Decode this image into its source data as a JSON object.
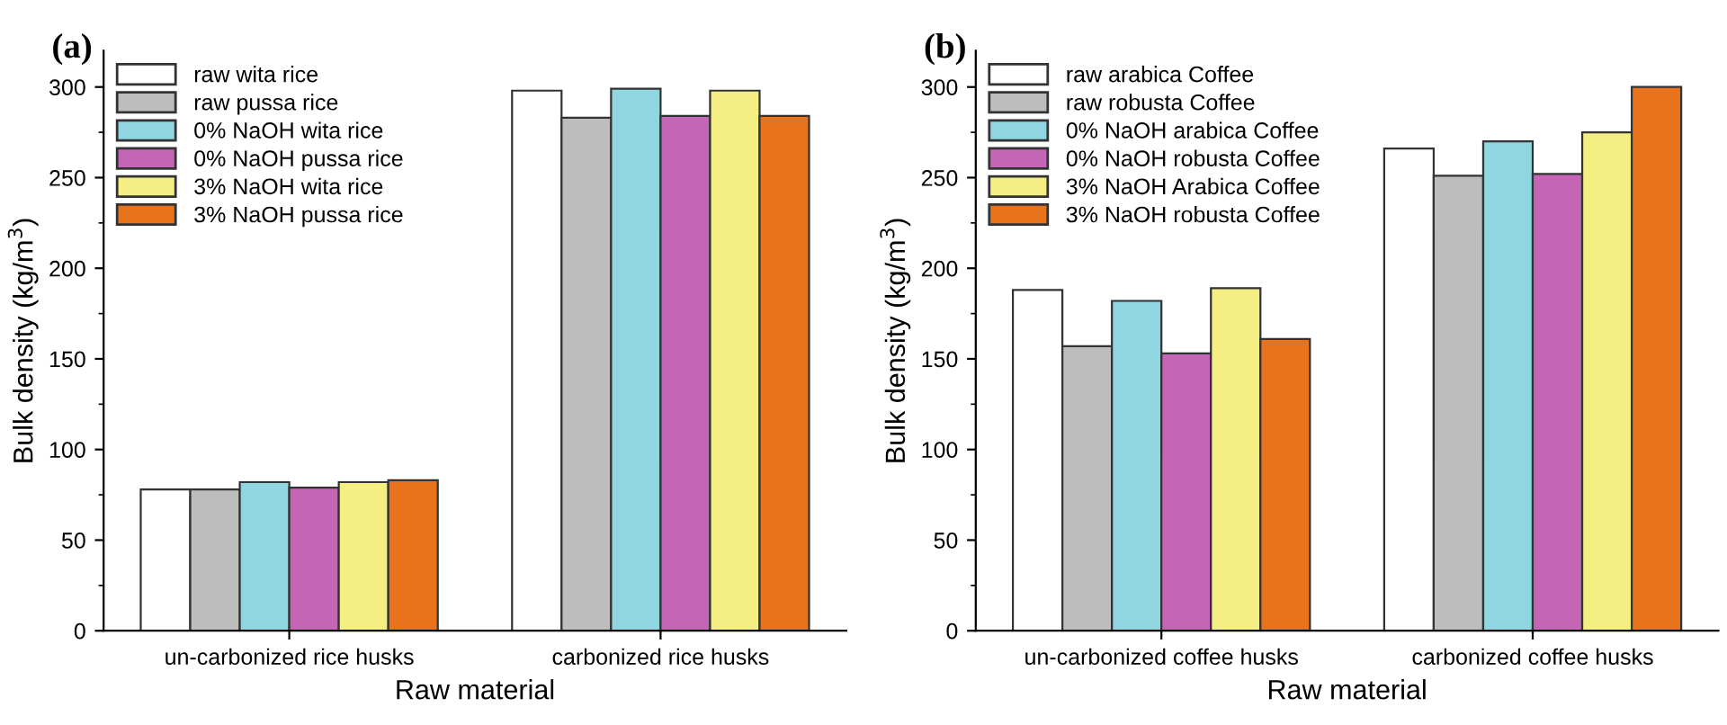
{
  "chart_data": [
    {
      "type": "bar",
      "title": "(a)",
      "xlabel": "Raw material",
      "ylabel": "Bulk density (kg/m$^{3}$)",
      "categories": [
        "un-carbonized rice husks",
        "carbonized rice husks"
      ],
      "ylim": [
        0,
        320
      ],
      "yticks": [
        0,
        50,
        100,
        150,
        200,
        250,
        300
      ],
      "legend": "top left",
      "series": [
        {
          "name": "raw wita rice",
          "color": "#ffffff",
          "values": [
            78,
            298
          ]
        },
        {
          "name": "raw pussa rice",
          "color": "#bdbdbd",
          "values": [
            78,
            283
          ]
        },
        {
          "name": "0% NaOH wita rice",
          "color": "#8fd6e0",
          "values": [
            82,
            299
          ]
        },
        {
          "name": "0% NaOH pussa rice",
          "color": "#c565b5",
          "values": [
            79,
            284
          ]
        },
        {
          "name": "3% NaOH wita rice",
          "color": "#f5ee82",
          "values": [
            82,
            298
          ]
        },
        {
          "name": "3% NaOH pussa rice",
          "color": "#e8731c",
          "values": [
            83,
            284
          ]
        }
      ]
    },
    {
      "type": "bar",
      "title": "(b)",
      "xlabel": "Raw material",
      "ylabel": "Bulk density (kg/m$^{3}$)",
      "categories": [
        "un-carbonized coffee husks",
        "carbonized coffee husks"
      ],
      "ylim": [
        0,
        320
      ],
      "yticks": [
        0,
        50,
        100,
        150,
        200,
        250,
        300
      ],
      "legend": "top left",
      "series": [
        {
          "name": "raw arabica Coffee",
          "color": "#ffffff",
          "values": [
            188,
            266
          ]
        },
        {
          "name": "raw robusta Coffee",
          "color": "#bdbdbd",
          "values": [
            157,
            251
          ]
        },
        {
          "name": "0% NaOH arabica Coffee",
          "color": "#8fd6e0",
          "values": [
            182,
            270
          ]
        },
        {
          "name": "0% NaOH robusta Coffee",
          "color": "#c565b5",
          "values": [
            153,
            252
          ]
        },
        {
          "name": "3% NaOH Arabica Coffee",
          "color": "#f5ee82",
          "values": [
            189,
            275
          ]
        },
        {
          "name": "3% NaOH robusta Coffee",
          "color": "#e8731c",
          "values": [
            161,
            300
          ]
        }
      ]
    }
  ]
}
